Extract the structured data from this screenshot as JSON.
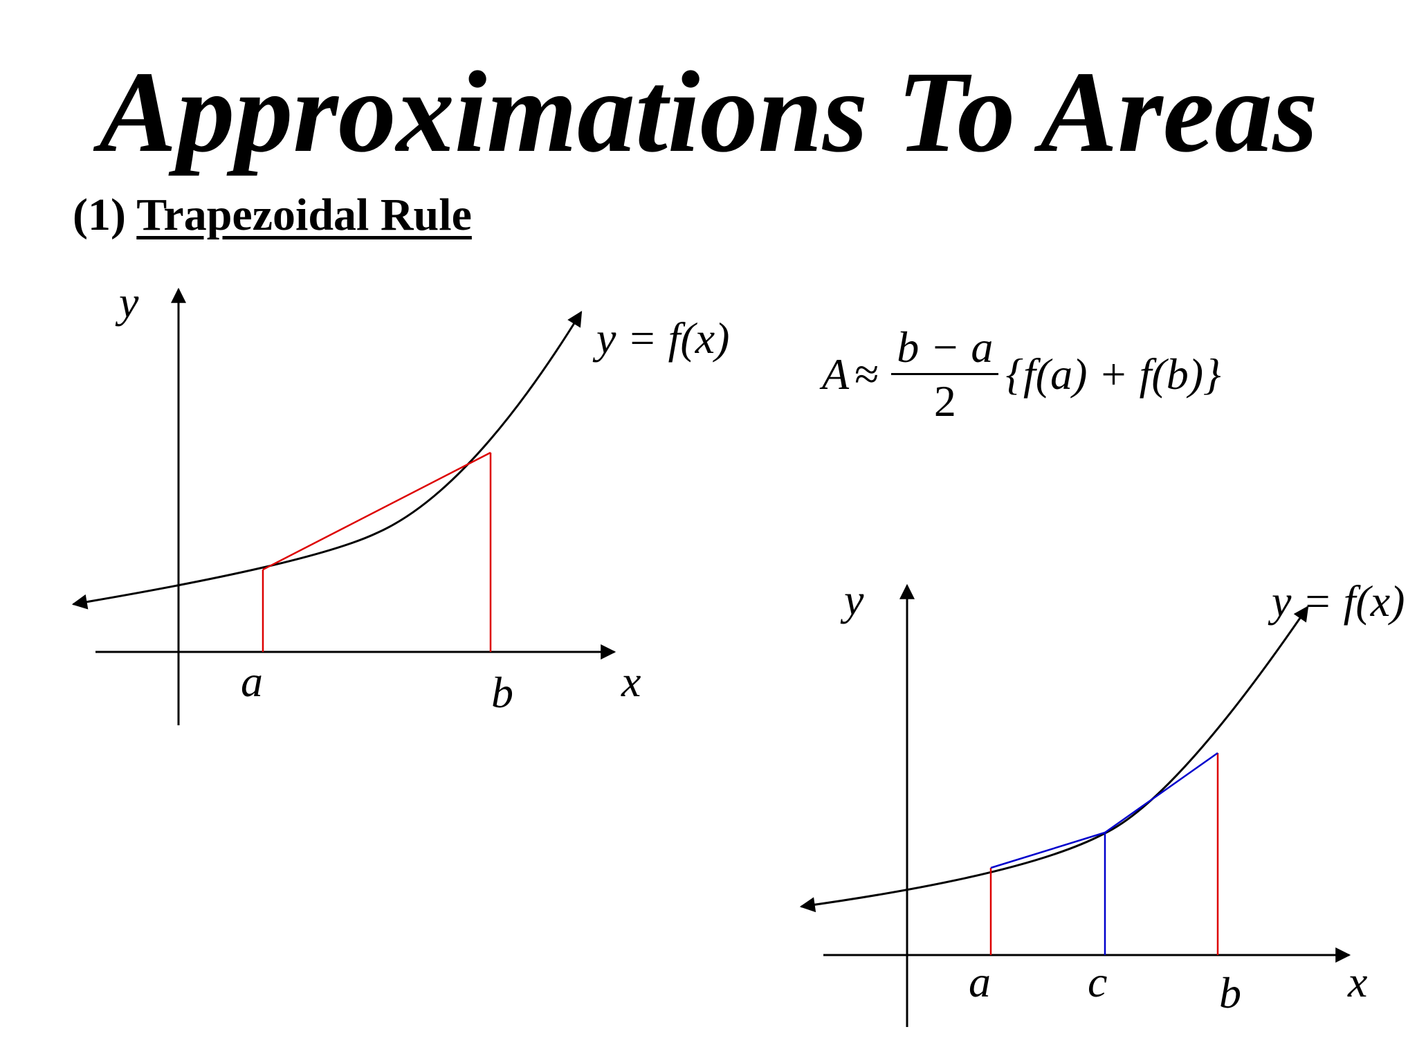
{
  "title": "Approximations To Areas",
  "section": {
    "number": "(1)",
    "name": "Trapezoidal Rule"
  },
  "formula": {
    "lhs": "A",
    "approx": "≈",
    "numerator": "b − a",
    "denominator": "2",
    "rhs": "{f(a) + f(b)}"
  },
  "diagram1": {
    "axis_x_label": "x",
    "axis_y_label": "y",
    "curve_label": "y = f(x)",
    "point_a_label": "a",
    "point_b_label": "b"
  },
  "diagram2": {
    "axis_x_label": "x",
    "axis_y_label": "y",
    "curve_label": "y = f(x)",
    "point_a_label": "a",
    "point_c_label": "c",
    "point_b_label": "b"
  },
  "colors": {
    "ordinate_ends": "#dd0000",
    "ordinate_middle": "#0000cc",
    "curve": "#000000"
  }
}
